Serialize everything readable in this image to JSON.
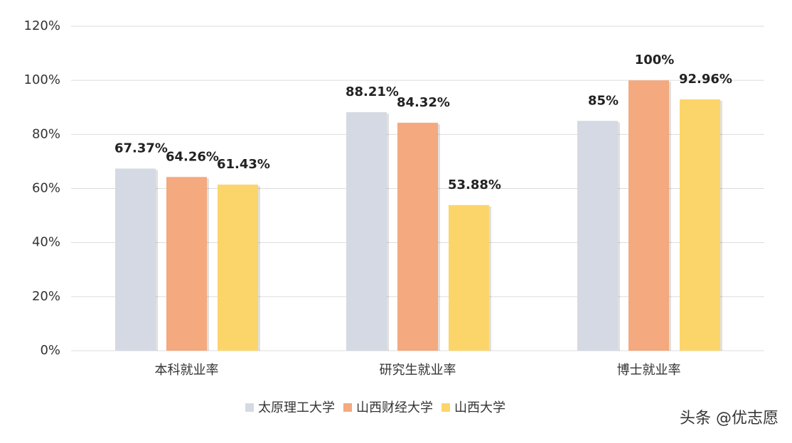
{
  "chart_data": {
    "type": "bar",
    "categories": [
      "本科就业率",
      "研究生就业率",
      "博士就业率"
    ],
    "series": [
      {
        "name": "太原理工大学",
        "color": "#d5d9e3",
        "values": [
          67.37,
          88.21,
          85
        ],
        "value_labels": [
          "67.37%",
          "88.21%",
          "85%"
        ]
      },
      {
        "name": "山西财经大学",
        "color": "#f4a97e",
        "values": [
          64.26,
          84.32,
          100
        ],
        "value_labels": [
          "64.26%",
          "84.32%",
          "100%"
        ]
      },
      {
        "name": "山西大学",
        "color": "#fcd56a",
        "values": [
          61.43,
          53.88,
          92.96
        ],
        "value_labels": [
          "61.43%",
          "53.88%",
          "92.96%"
        ]
      }
    ],
    "ylim": [
      0,
      120
    ],
    "yticks": [
      {
        "value": 0,
        "label": "0%"
      },
      {
        "value": 20,
        "label": "20%"
      },
      {
        "value": 40,
        "label": "40%"
      },
      {
        "value": 60,
        "label": "60%"
      },
      {
        "value": 80,
        "label": "80%"
      },
      {
        "value": 100,
        "label": "100%"
      },
      {
        "value": 120,
        "label": "120%"
      }
    ],
    "grid": true,
    "legend": "bottom",
    "credit": "头条 @优志愿"
  }
}
